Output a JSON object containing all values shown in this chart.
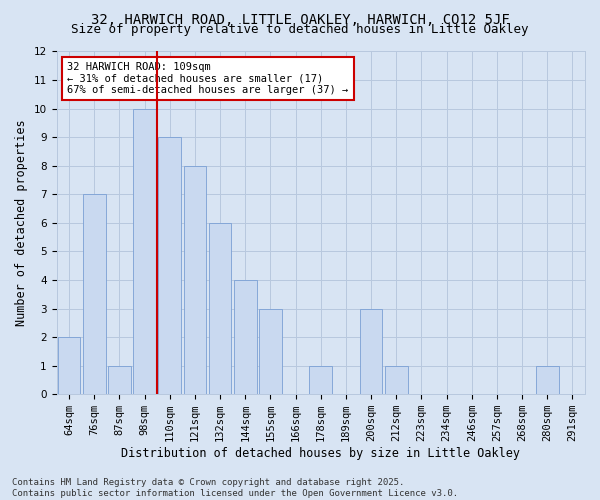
{
  "title": "32, HARWICH ROAD, LITTLE OAKLEY, HARWICH, CO12 5JF",
  "subtitle": "Size of property relative to detached houses in Little Oakley",
  "xlabel": "Distribution of detached houses by size in Little Oakley",
  "ylabel": "Number of detached properties",
  "categories": [
    "64sqm",
    "76sqm",
    "87sqm",
    "98sqm",
    "110sqm",
    "121sqm",
    "132sqm",
    "144sqm",
    "155sqm",
    "166sqm",
    "178sqm",
    "189sqm",
    "200sqm",
    "212sqm",
    "223sqm",
    "234sqm",
    "246sqm",
    "257sqm",
    "268sqm",
    "280sqm",
    "291sqm"
  ],
  "values": [
    2,
    7,
    1,
    10,
    9,
    8,
    6,
    4,
    3,
    0,
    1,
    0,
    3,
    1,
    0,
    0,
    0,
    0,
    0,
    1,
    0
  ],
  "bar_color": "#c9d9f0",
  "bar_edge_color": "#7a9fd4",
  "red_line_index": 4,
  "annotation_text": "32 HARWICH ROAD: 109sqm\n← 31% of detached houses are smaller (17)\n67% of semi-detached houses are larger (37) →",
  "annotation_box_color": "#ffffff",
  "annotation_box_edge_color": "#cc0000",
  "ylim": [
    0,
    12
  ],
  "yticks": [
    0,
    1,
    2,
    3,
    4,
    5,
    6,
    7,
    8,
    9,
    10,
    11,
    12
  ],
  "grid_color": "#b8c8de",
  "background_color": "#d8e4f3",
  "footer_line1": "Contains HM Land Registry data © Crown copyright and database right 2025.",
  "footer_line2": "Contains public sector information licensed under the Open Government Licence v3.0.",
  "title_fontsize": 10,
  "subtitle_fontsize": 9,
  "xlabel_fontsize": 8.5,
  "ylabel_fontsize": 8.5,
  "tick_fontsize": 7.5,
  "annotation_fontsize": 7.5,
  "footer_fontsize": 6.5
}
